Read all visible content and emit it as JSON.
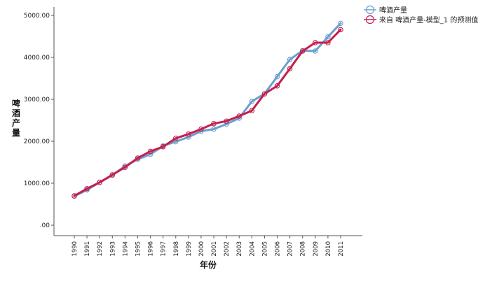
{
  "chart_data": {
    "type": "line",
    "xlabel": "年份",
    "ylabel": "啤酒产量",
    "ylim": [
      0,
      5200
    ],
    "yticks": [
      0,
      1000,
      2000,
      3000,
      4000,
      5000
    ],
    "ytick_labels": [
      ".00",
      "1000.00",
      "2000.00",
      "3000.00",
      "4000.00",
      "5000.00"
    ],
    "categories": [
      "1990",
      "1991",
      "1992",
      "1993",
      "1994",
      "1995",
      "1996",
      "1997",
      "1998",
      "1999",
      "2000",
      "2001",
      "2002",
      "2003",
      "2004",
      "2005",
      "2006",
      "2007",
      "2008",
      "2009",
      "2010",
      "2011"
    ],
    "grid": "horizontal",
    "legend_position": "top-right",
    "series": [
      {
        "name": "啤酒产量",
        "color": "#6a9fd0",
        "marker": "circle",
        "values": [
          690,
          840,
          1020,
          1190,
          1410,
          1570,
          1690,
          1890,
          1990,
          2100,
          2240,
          2290,
          2410,
          2550,
          2950,
          3130,
          3540,
          3950,
          4160,
          4150,
          4490,
          4810
        ]
      },
      {
        "name": "来自 啤酒产量-模型_1 的预测值",
        "color": "#c4204c",
        "marker": "circle",
        "values": [
          700,
          870,
          1020,
          1200,
          1380,
          1600,
          1760,
          1870,
          2070,
          2170,
          2290,
          2420,
          2480,
          2600,
          2730,
          3130,
          3320,
          3730,
          4150,
          4350,
          4350,
          4660
        ]
      }
    ]
  }
}
